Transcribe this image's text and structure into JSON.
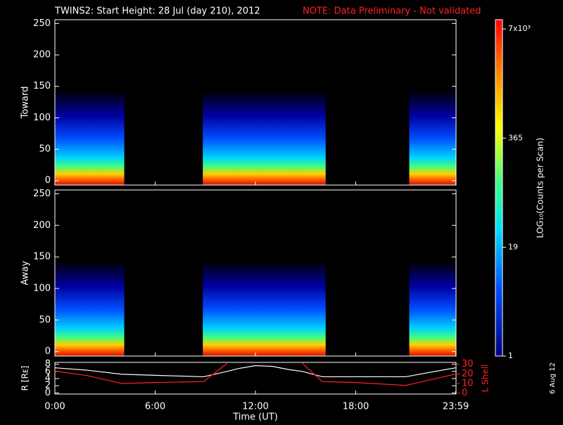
{
  "chart_data": [
    {
      "type": "spectrogram",
      "title": "TWINS2: Start Height: 28 Jul (day 210), 2012",
      "note": "NOTE: Data Preliminary - Not validated",
      "ylabel": "Toward",
      "xlim": [
        0,
        24
      ],
      "ylim": [
        -7,
        256
      ],
      "yticks": [
        0,
        50,
        100,
        150,
        200,
        250
      ],
      "intervals": [
        [
          0,
          4.15
        ],
        [
          8.85,
          16.2
        ],
        [
          21.2,
          24
        ]
      ],
      "colorbar": {
        "label": "LOG₁₀(Counts per Scan)",
        "log": true,
        "lim": [
          1,
          9000
        ],
        "ticks": [
          {
            "value": 7000,
            "label": "7x10³"
          },
          365,
          19,
          1
        ]
      }
    },
    {
      "type": "spectrogram",
      "ylabel": "Away",
      "xlim": [
        0,
        24
      ],
      "ylim": [
        -7,
        256
      ],
      "yticks": [
        0,
        50,
        100,
        150,
        200,
        250
      ],
      "intervals": [
        [
          0,
          4.15
        ],
        [
          8.85,
          16.2
        ],
        [
          21.2,
          24
        ]
      ]
    },
    {
      "type": "line",
      "xlabel": "Time (UT)",
      "ylabel": "R [Rᴇ]",
      "y2label": "L Shell",
      "xlim": [
        0,
        24
      ],
      "xticks": [
        {
          "value": 0,
          "label": "0:00"
        },
        {
          "value": 6,
          "label": "6:00"
        },
        {
          "value": 12,
          "label": "12:00"
        },
        {
          "value": 18,
          "label": "18:00"
        },
        {
          "value": 23.983,
          "label": "23:59"
        }
      ],
      "ylim": [
        -0.3,
        8.5
      ],
      "yticks": [
        0,
        2,
        4,
        6,
        8
      ],
      "y2lim": [
        -1,
        32
      ],
      "y2ticks": [
        0,
        10,
        20,
        30
      ],
      "x": [
        0,
        2,
        4,
        6,
        8.9,
        10.3,
        11,
        12,
        13,
        14,
        14.8,
        16,
        18,
        21,
        22.5,
        24
      ],
      "series": [
        {
          "name": "R",
          "color": "#ffffff",
          "values": [
            7,
            6.3,
            5.2,
            4.9,
            4.5,
            6,
            6.8,
            7.6,
            7.4,
            6.5,
            6,
            4.5,
            4.5,
            4.5,
            5.8,
            7
          ]
        },
        {
          "name": "L",
          "color": "#ff2020",
          "axis": "y2",
          "values": [
            23,
            18,
            10,
            11,
            12,
            31,
            null,
            null,
            null,
            null,
            31,
            12,
            11,
            8,
            14,
            20
          ]
        }
      ]
    }
  ],
  "date_stamp": "6 Aug 12"
}
